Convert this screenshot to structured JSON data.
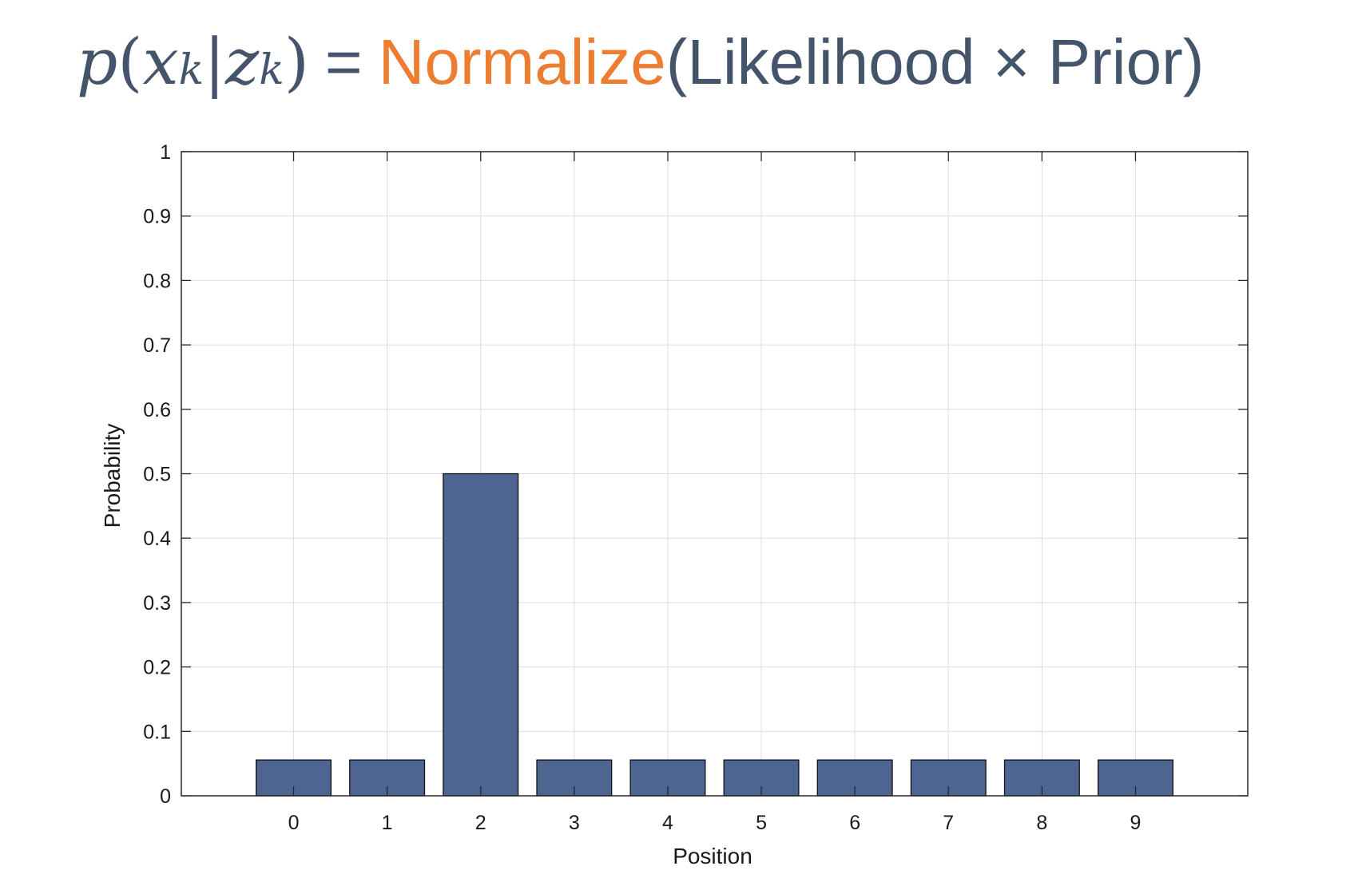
{
  "equation": {
    "p": "p",
    "lparen": "(",
    "x": "x",
    "x_sub": "k",
    "bar": "|",
    "z": "z",
    "z_sub": "k",
    "rparen": ")",
    "equals": "=",
    "normalize": "Normalize",
    "rest": "(Likelihood × Prior)"
  },
  "colors": {
    "bar_fill": "#4f6591",
    "normalize": "#ed7d31",
    "equation_text": "#44546a"
  },
  "chart_data": {
    "type": "bar",
    "title": "",
    "xlabel": "Position",
    "ylabel": "Probability",
    "categories": [
      "0",
      "1",
      "2",
      "3",
      "4",
      "5",
      "6",
      "7",
      "8",
      "9"
    ],
    "values": [
      0.0556,
      0.0556,
      0.5,
      0.0556,
      0.0556,
      0.0556,
      0.0556,
      0.0556,
      0.0556,
      0.0556
    ],
    "xlim": [
      -1.2,
      10.2
    ],
    "ylim": [
      0,
      1
    ],
    "yticks": [
      "0",
      "0.1",
      "0.2",
      "0.3",
      "0.4",
      "0.5",
      "0.6",
      "0.7",
      "0.8",
      "0.9",
      "1"
    ],
    "grid": true,
    "legend": "none"
  }
}
